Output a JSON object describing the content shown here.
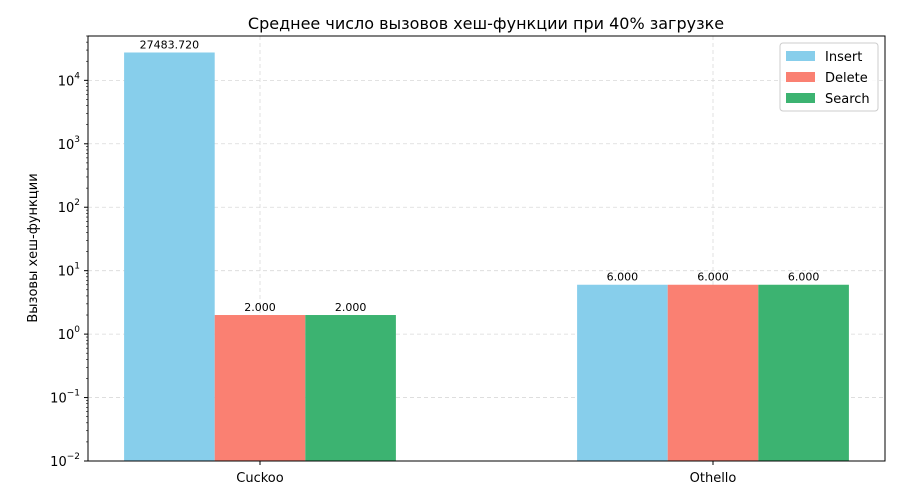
{
  "chart_data": {
    "type": "bar",
    "title": "Среднее число вызовов хеш-функции при 40% загрузке",
    "xlabel": "",
    "ylabel": "Вызовы хеш-функции",
    "yscale": "log",
    "ylim": [
      0.01,
      50000
    ],
    "y_ticks": [
      {
        "base": "10",
        "exp": "−2",
        "value": 0.01
      },
      {
        "base": "10",
        "exp": "−1",
        "value": 0.1
      },
      {
        "base": "10",
        "exp": "0",
        "value": 1
      },
      {
        "base": "10",
        "exp": "1",
        "value": 10
      },
      {
        "base": "10",
        "exp": "2",
        "value": 100
      },
      {
        "base": "10",
        "exp": "3",
        "value": 1000
      },
      {
        "base": "10",
        "exp": "4",
        "value": 10000
      }
    ],
    "categories": [
      "Cuckoo",
      "Othello"
    ],
    "series": [
      {
        "name": "Insert",
        "color": "#87ceeb",
        "values": [
          27483.72,
          6.0
        ],
        "labels": [
          "27483.720",
          "6.000"
        ]
      },
      {
        "name": "Delete",
        "color": "#fa8072",
        "values": [
          2.0,
          6.0
        ],
        "labels": [
          "2.000",
          "6.000"
        ]
      },
      {
        "name": "Search",
        "color": "#3cb371",
        "values": [
          2.0,
          6.0
        ],
        "labels": [
          "2.000",
          "6.000"
        ]
      }
    ],
    "grid": true,
    "legend_position": "top-right"
  }
}
